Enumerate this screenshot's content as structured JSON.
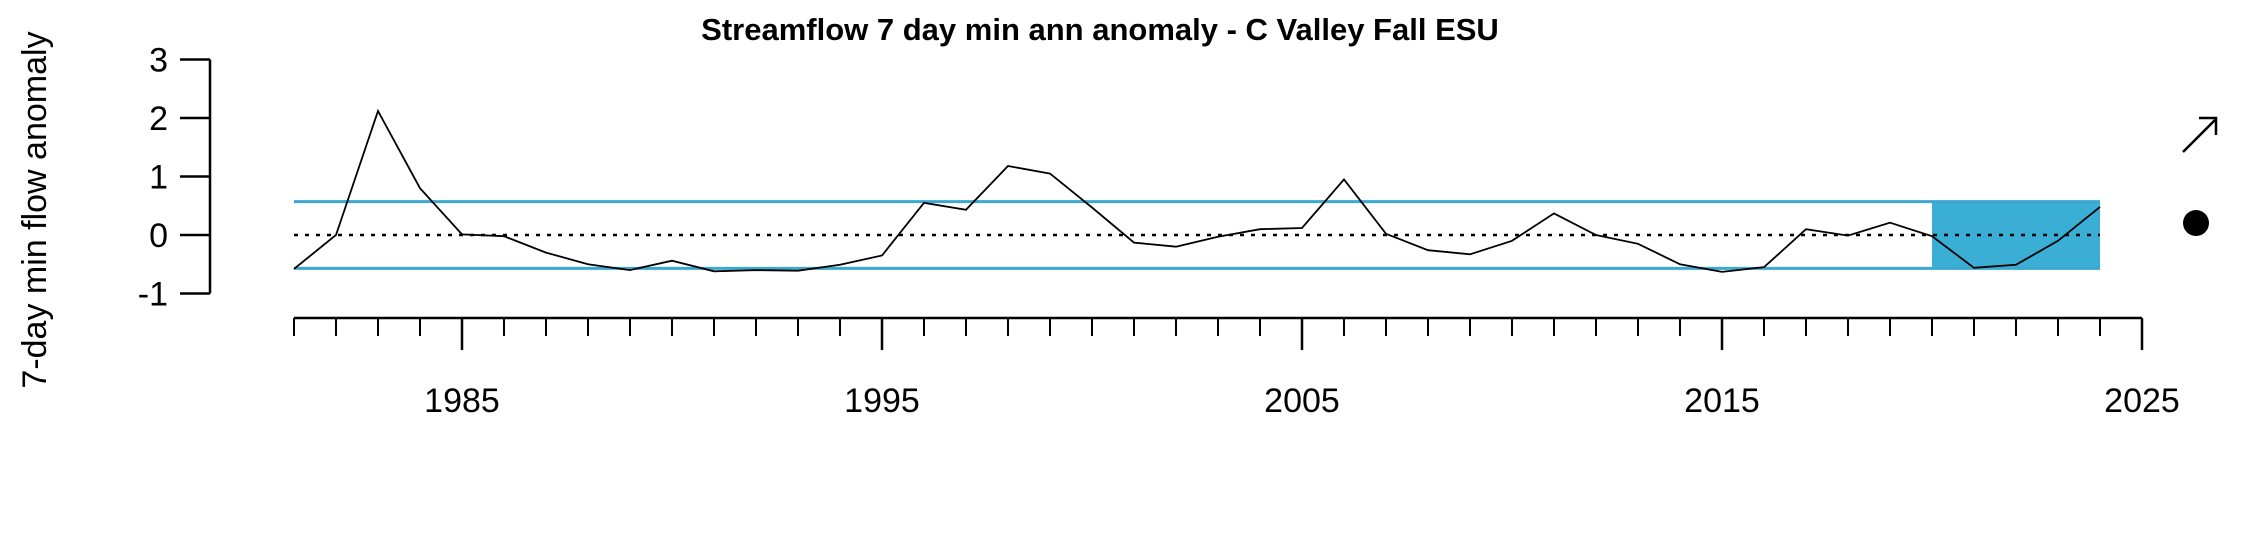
{
  "chart_data": {
    "type": "line",
    "title": "Streamflow 7 day min ann anomaly - C Valley Fall ESU",
    "xlabel": "",
    "ylabel": "7-day min flow anomaly",
    "xlim": [
      1977,
      2025
    ],
    "ylim": [
      -1,
      3
    ],
    "x_ticks_labeled": [
      "1985",
      "1995",
      "2005",
      "2015",
      "2025"
    ],
    "y_ticks": [
      "-1",
      "0",
      "1",
      "2",
      "3"
    ],
    "grid": false,
    "series": [
      {
        "x": [
          1981,
          1982,
          1983,
          1984,
          1985,
          1986,
          1987,
          1988,
          1989,
          1990,
          1991,
          1992,
          1993,
          1994,
          1995,
          1996,
          1997,
          1998,
          1999,
          2000,
          2001,
          2002,
          2003,
          2004,
          2005,
          2006,
          2007,
          2008,
          2009,
          2010,
          2011,
          2012,
          2013,
          2014,
          2015,
          2016,
          2017,
          2018,
          2019,
          2020,
          2021,
          2022,
          2023,
          2024
        ],
        "values": [
          -0.58,
          0.0,
          2.12,
          0.8,
          0.01,
          -0.02,
          -0.3,
          -0.5,
          -0.6,
          -0.44,
          -0.62,
          -0.6,
          -0.61,
          -0.51,
          -0.35,
          0.55,
          0.43,
          1.18,
          1.05,
          0.47,
          -0.13,
          -0.2,
          -0.03,
          0.1,
          0.12,
          0.95,
          0.02,
          -0.26,
          -0.33,
          -0.1,
          0.37,
          0.0,
          -0.15,
          -0.5,
          -0.63,
          -0.55,
          0.1,
          -0.01,
          0.21,
          -0.02,
          -0.56,
          -0.51,
          -0.1,
          0.48
        ],
        "color": "#000000"
      }
    ],
    "reference_lines": {
      "mean": 0.0,
      "upper_sd": 0.57,
      "lower_sd": -0.57,
      "sd_line_color": "#3aa8d0",
      "mean_line_style": "dotted"
    },
    "highlight_period": {
      "start": 2020,
      "end": 2024,
      "color": "#3aaed4"
    },
    "trend_indicator": {
      "arrow": "up-right-arrow-icon",
      "status": "filled-circle-icon"
    }
  }
}
